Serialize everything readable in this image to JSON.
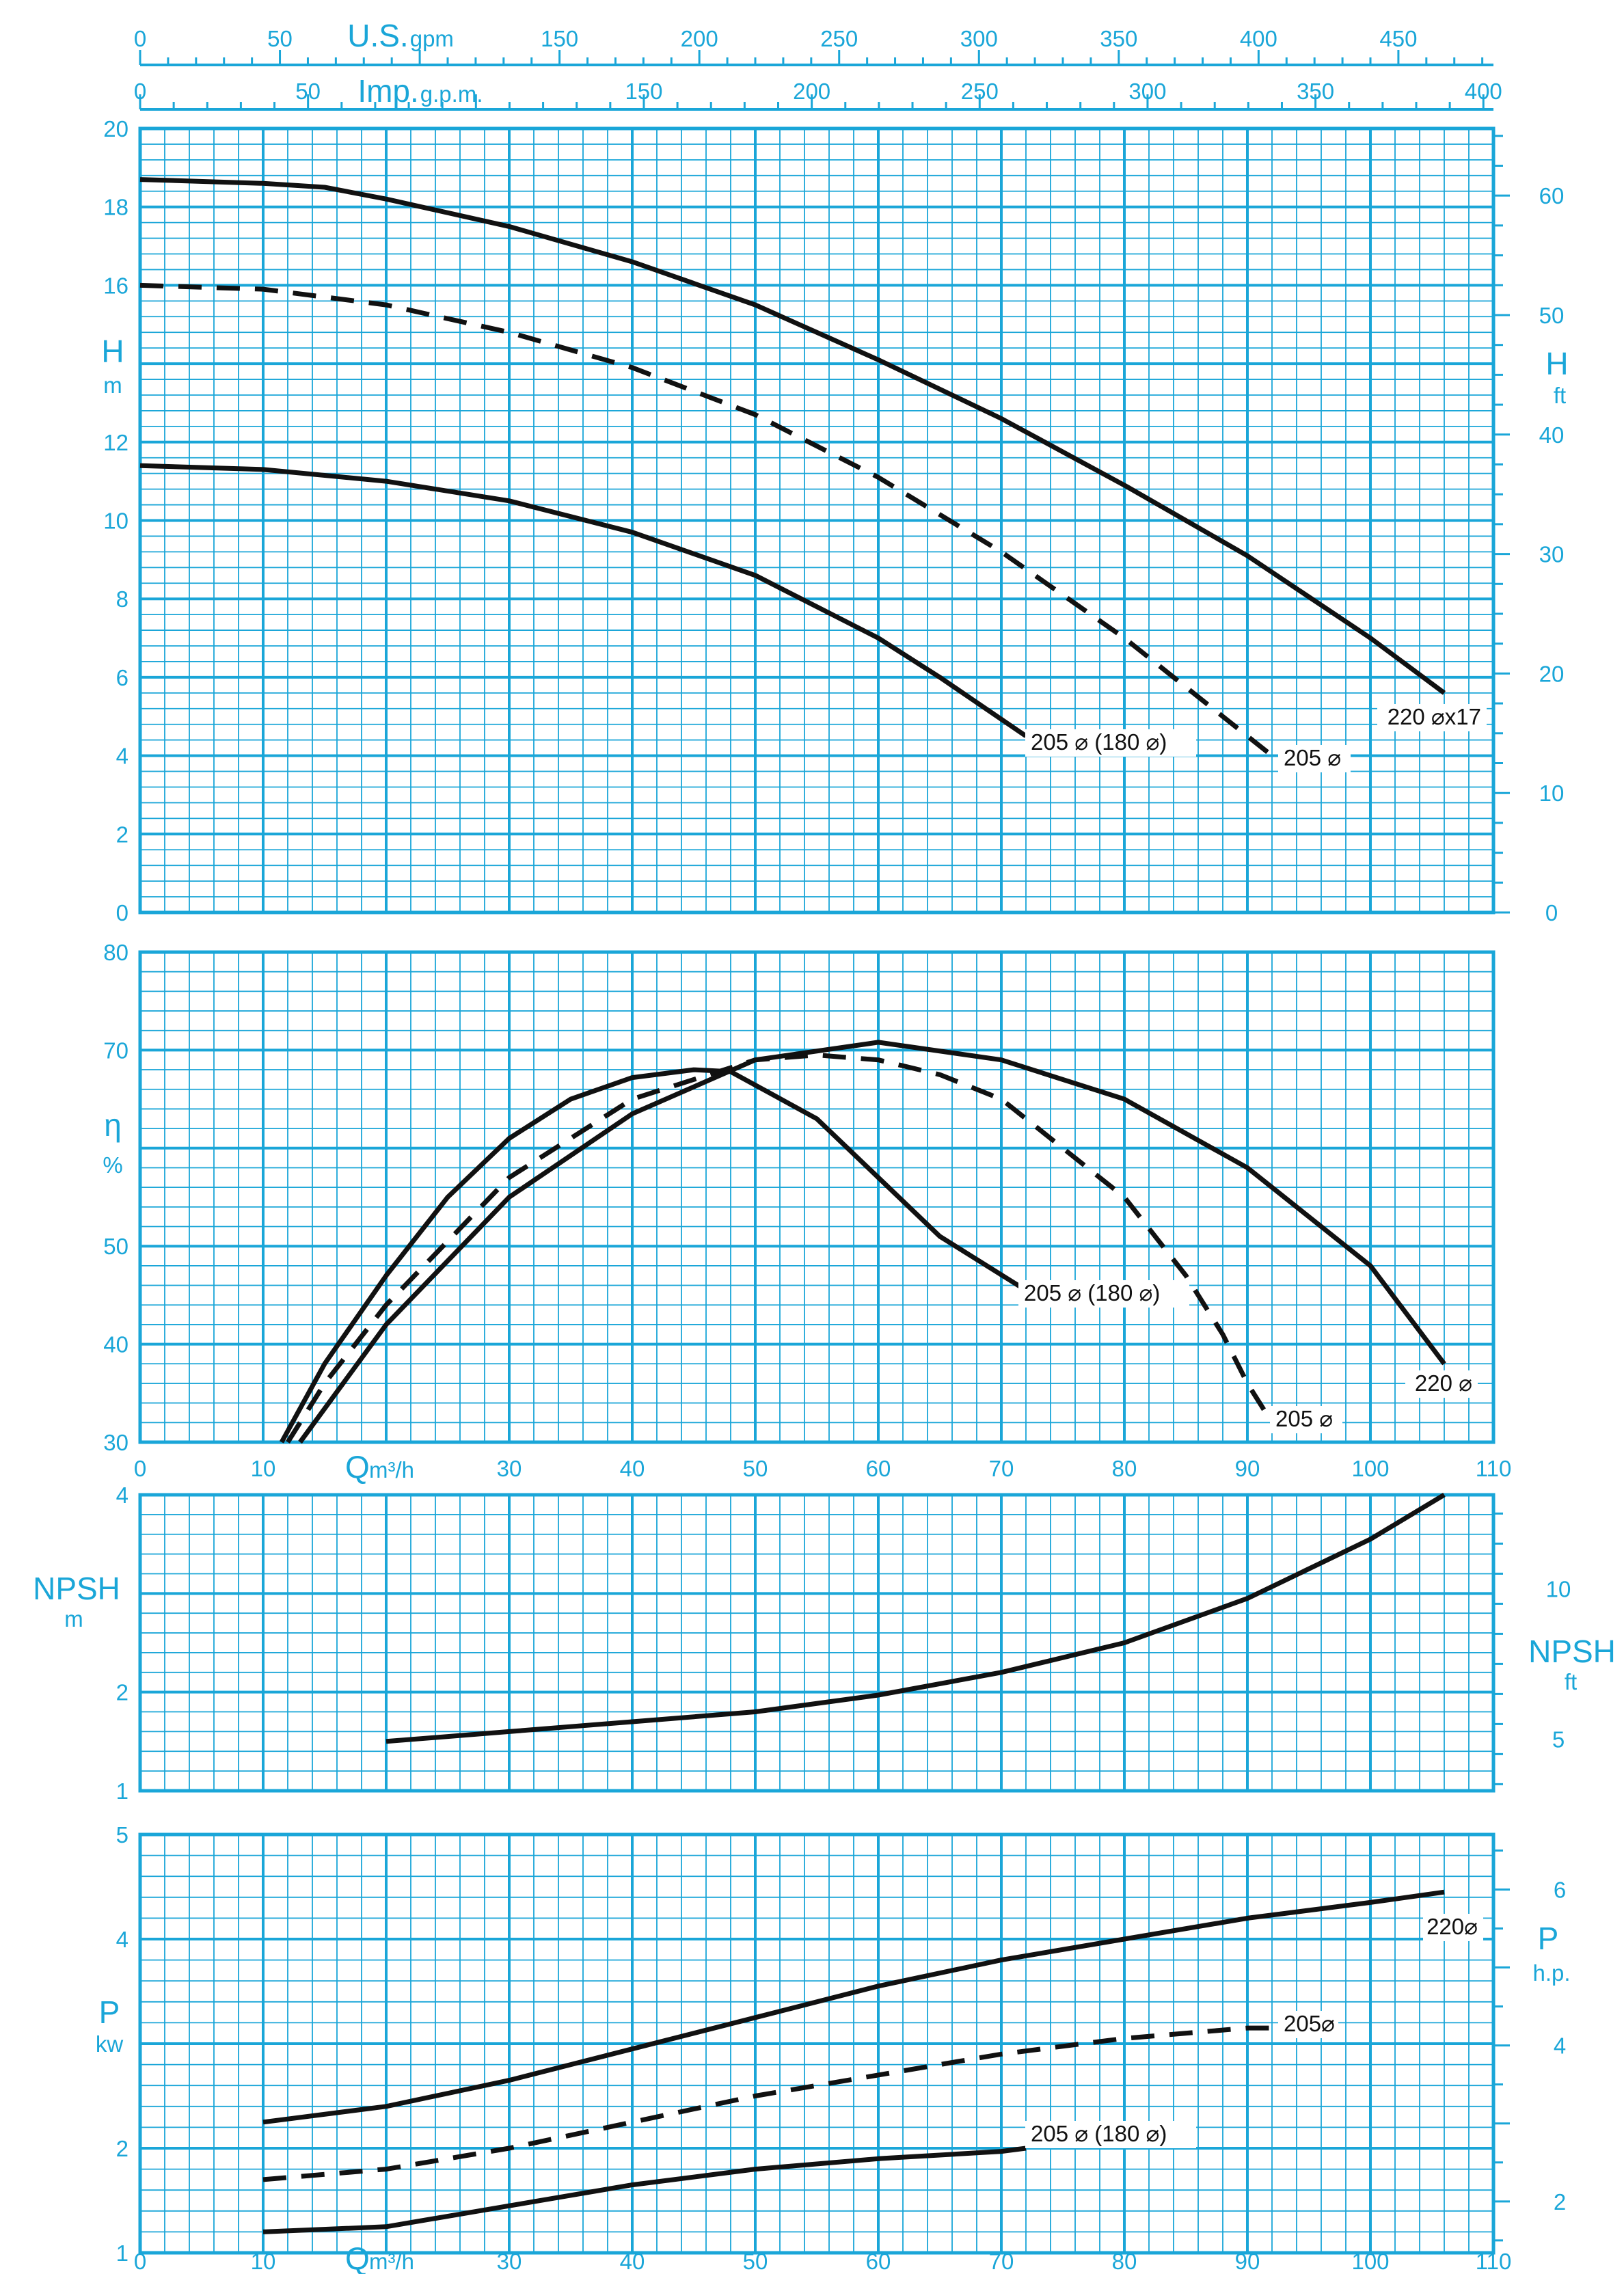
{
  "colors": {
    "accent": "#1aa6d8",
    "curve": "#111111",
    "background": "#ffffff"
  },
  "chart_data": [
    {
      "type": "line",
      "panel": "head",
      "top_axes": [
        {
          "unit_main": "U.S.",
          "unit_sub": "gpm",
          "ticks": [
            "0",
            "50",
            "150",
            "200",
            "250",
            "300",
            "350",
            "400",
            "450"
          ],
          "range": [
            0,
            484
          ]
        },
        {
          "unit_main": "Imp.",
          "unit_sub": "g.p.m.",
          "ticks": [
            "0",
            "50",
            "150",
            "200",
            "250",
            "300",
            "350",
            "400"
          ],
          "range": [
            0,
            403
          ]
        }
      ],
      "ylabel": "H",
      "yunit": "m",
      "ylim": [
        0,
        20
      ],
      "yticks": [
        "0",
        "2",
        "4",
        "6",
        "8",
        "10",
        "12",
        "16",
        "18",
        "20"
      ],
      "y2label": "H",
      "y2unit": "ft",
      "y2ticks": [
        "0",
        "10",
        "20",
        "30",
        "40",
        "50",
        "60"
      ],
      "xlim": [
        0,
        110
      ],
      "series": [
        {
          "name": "220 ⌀x17",
          "style": "solid",
          "x": [
            0,
            10,
            15,
            20,
            30,
            40,
            50,
            60,
            70,
            80,
            90,
            100,
            106
          ],
          "y": [
            18.7,
            18.6,
            18.5,
            18.2,
            17.5,
            16.6,
            15.5,
            14.1,
            12.6,
            10.9,
            9.1,
            7.0,
            5.6
          ]
        },
        {
          "name": "205 ⌀",
          "style": "dashed",
          "x": [
            0,
            10,
            20,
            30,
            40,
            50,
            60,
            70,
            80,
            90,
            92
          ],
          "y": [
            16.0,
            15.9,
            15.5,
            14.8,
            13.9,
            12.7,
            11.1,
            9.2,
            7.0,
            4.5,
            4.0
          ]
        },
        {
          "name": "205 ⌀ (180 ⌀)",
          "style": "solid",
          "x": [
            0,
            10,
            20,
            30,
            40,
            50,
            60,
            65,
            72
          ],
          "y": [
            11.4,
            11.3,
            11.0,
            10.5,
            9.7,
            8.6,
            7.0,
            6.0,
            4.5
          ]
        }
      ]
    },
    {
      "type": "line",
      "panel": "efficiency",
      "ylabel": "η",
      "yunit": "%",
      "ylim": [
        30,
        80
      ],
      "yticks": [
        "30",
        "40",
        "50",
        "70",
        "80"
      ],
      "xlim": [
        0,
        110
      ],
      "series": [
        {
          "name": "205 ⌀ (180 ⌀)",
          "style": "solid",
          "x": [
            11.5,
            15,
            20,
            25,
            30,
            35,
            40,
            45,
            48,
            55,
            60,
            65,
            72
          ],
          "y": [
            30,
            38,
            47,
            55,
            61,
            65,
            67.2,
            68,
            67.8,
            63,
            57,
            51,
            45.5
          ]
        },
        {
          "name": "205 ⌀",
          "style": "dashed",
          "x": [
            12,
            15,
            20,
            30,
            40,
            50,
            55,
            60,
            65,
            70,
            75,
            80,
            85,
            88,
            90,
            92
          ],
          "y": [
            30,
            36,
            44,
            57,
            65,
            69,
            69.5,
            69,
            67.5,
            65,
            60,
            55,
            47,
            41,
            36,
            32
          ]
        },
        {
          "name": "220 ⌀",
          "style": "solid",
          "x": [
            13,
            20,
            30,
            40,
            50,
            60,
            70,
            80,
            90,
            100,
            106
          ],
          "y": [
            30,
            42,
            55,
            63.5,
            69,
            70.8,
            69,
            65,
            58,
            48,
            38
          ]
        }
      ]
    },
    {
      "type": "line",
      "panel": "npsh",
      "xlabel_main": "Q",
      "xlabel_unit": "m³/h",
      "xticks": [
        "0",
        "10",
        "30",
        "40",
        "50",
        "60",
        "70",
        "80",
        "90",
        "100",
        "110"
      ],
      "xlim": [
        0,
        110
      ],
      "ylabel": "NPSH",
      "yunit": "m",
      "ylim": [
        1,
        4
      ],
      "yticks": [
        "1",
        "2",
        "4"
      ],
      "y2label": "NPSH",
      "y2unit": "ft",
      "y2ticks": [
        "5",
        "10"
      ],
      "series": [
        {
          "name": "",
          "style": "solid",
          "x": [
            20,
            30,
            40,
            50,
            60,
            70,
            80,
            90,
            100,
            106
          ],
          "y": [
            1.5,
            1.6,
            1.7,
            1.8,
            1.97,
            2.2,
            2.5,
            2.95,
            3.55,
            4.0
          ]
        }
      ]
    },
    {
      "type": "line",
      "panel": "power",
      "xlabel_main": "Q",
      "xlabel_unit": "m³/h",
      "xticks": [
        "0",
        "10",
        "30",
        "40",
        "50",
        "60",
        "70",
        "80",
        "90",
        "100",
        "110"
      ],
      "xlim": [
        0,
        110
      ],
      "ylabel": "P",
      "yunit": "kw",
      "ylim": [
        1,
        5
      ],
      "yticks": [
        "1",
        "2",
        "4",
        "5"
      ],
      "y2label": "P",
      "y2unit": "h.p.",
      "y2ticks": [
        "2",
        "4",
        "6"
      ],
      "series": [
        {
          "name": "220⌀",
          "style": "solid",
          "x": [
            10,
            20,
            30,
            40,
            50,
            60,
            70,
            80,
            90,
            100,
            106
          ],
          "y": [
            2.25,
            2.4,
            2.65,
            2.95,
            3.25,
            3.55,
            3.8,
            4.0,
            4.2,
            4.35,
            4.45
          ]
        },
        {
          "name": "205⌀",
          "style": "dashed",
          "x": [
            10,
            20,
            30,
            40,
            50,
            60,
            70,
            80,
            90,
            92
          ],
          "y": [
            1.7,
            1.8,
            2.0,
            2.25,
            2.5,
            2.7,
            2.9,
            3.05,
            3.15,
            3.15
          ]
        },
        {
          "name": "205 ⌀ (180 ⌀)",
          "style": "solid",
          "x": [
            10,
            20,
            30,
            40,
            50,
            60,
            70,
            72
          ],
          "y": [
            1.2,
            1.25,
            1.45,
            1.65,
            1.8,
            1.9,
            1.97,
            2.0
          ]
        }
      ]
    }
  ]
}
